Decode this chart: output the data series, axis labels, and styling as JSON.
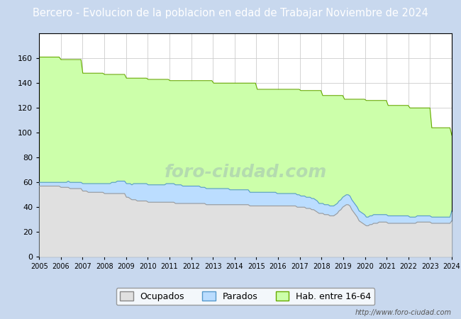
{
  "title": "Bercero - Evolucion de la poblacion en edad de Trabajar Noviembre de 2024",
  "title_bg": "#5b8dd9",
  "title_color": "white",
  "title_fontsize": 10.5,
  "years_labels": [
    2005,
    2006,
    2007,
    2008,
    2009,
    2010,
    2011,
    2012,
    2013,
    2014,
    2015,
    2016,
    2017,
    2018,
    2019,
    2020,
    2021,
    2022,
    2023,
    2024
  ],
  "hab_16_64": [
    161,
    161,
    161,
    161,
    161,
    161,
    161,
    161,
    161,
    161,
    161,
    161,
    159,
    159,
    159,
    159,
    159,
    159,
    159,
    159,
    159,
    159,
    159,
    159,
    148,
    148,
    148,
    148,
    148,
    148,
    148,
    148,
    148,
    148,
    148,
    148,
    147,
    147,
    147,
    147,
    147,
    147,
    147,
    147,
    147,
    147,
    147,
    147,
    144,
    144,
    144,
    144,
    144,
    144,
    144,
    144,
    144,
    144,
    144,
    144,
    143,
    143,
    143,
    143,
    143,
    143,
    143,
    143,
    143,
    143,
    143,
    143,
    142,
    142,
    142,
    142,
    142,
    142,
    142,
    142,
    142,
    142,
    142,
    142,
    142,
    142,
    142,
    142,
    142,
    142,
    142,
    142,
    142,
    142,
    142,
    142,
    140,
    140,
    140,
    140,
    140,
    140,
    140,
    140,
    140,
    140,
    140,
    140,
    140,
    140,
    140,
    140,
    140,
    140,
    140,
    140,
    140,
    140,
    140,
    140,
    135,
    135,
    135,
    135,
    135,
    135,
    135,
    135,
    135,
    135,
    135,
    135,
    135,
    135,
    135,
    135,
    135,
    135,
    135,
    135,
    135,
    135,
    135,
    135,
    134,
    134,
    134,
    134,
    134,
    134,
    134,
    134,
    134,
    134,
    134,
    134,
    130,
    130,
    130,
    130,
    130,
    130,
    130,
    130,
    130,
    130,
    130,
    130,
    127,
    127,
    127,
    127,
    127,
    127,
    127,
    127,
    127,
    127,
    127,
    127,
    126,
    126,
    126,
    126,
    126,
    126,
    126,
    126,
    126,
    126,
    126,
    126,
    122,
    122,
    122,
    122,
    122,
    122,
    122,
    122,
    122,
    122,
    122,
    122,
    120,
    120,
    120,
    120,
    120,
    120,
    120,
    120,
    120,
    120,
    120,
    120,
    104,
    104,
    104,
    104,
    104,
    104,
    104,
    104,
    104,
    104,
    104,
    98
  ],
  "ocupados": [
    57,
    57,
    57,
    57,
    57,
    57,
    57,
    57,
    57,
    57,
    57,
    57,
    56,
    56,
    56,
    56,
    56,
    55,
    55,
    55,
    55,
    55,
    55,
    55,
    53,
    53,
    53,
    52,
    52,
    52,
    52,
    52,
    52,
    52,
    52,
    52,
    51,
    51,
    51,
    51,
    51,
    51,
    51,
    51,
    51,
    51,
    51,
    51,
    48,
    48,
    47,
    46,
    46,
    46,
    45,
    45,
    45,
    45,
    45,
    45,
    44,
    44,
    44,
    44,
    44,
    44,
    44,
    44,
    44,
    44,
    44,
    44,
    44,
    44,
    44,
    43,
    43,
    43,
    43,
    43,
    43,
    43,
    43,
    43,
    43,
    43,
    43,
    43,
    43,
    43,
    43,
    43,
    42,
    42,
    42,
    42,
    42,
    42,
    42,
    42,
    42,
    42,
    42,
    42,
    42,
    42,
    42,
    42,
    42,
    42,
    42,
    42,
    42,
    42,
    42,
    42,
    41,
    41,
    41,
    41,
    41,
    41,
    41,
    41,
    41,
    41,
    41,
    41,
    41,
    41,
    41,
    41,
    41,
    41,
    41,
    41,
    41,
    41,
    41,
    41,
    41,
    41,
    40,
    40,
    40,
    40,
    40,
    39,
    39,
    39,
    38,
    38,
    37,
    36,
    35,
    35,
    35,
    34,
    34,
    34,
    33,
    33,
    33,
    34,
    35,
    37,
    38,
    40,
    41,
    42,
    42,
    41,
    38,
    36,
    34,
    32,
    29,
    28,
    27,
    26,
    25,
    25,
    26,
    26,
    27,
    27,
    27,
    28,
    28,
    28,
    28,
    28,
    27,
    27,
    27,
    27,
    27,
    27,
    27,
    27,
    27,
    27,
    27,
    27,
    27,
    27,
    27,
    27,
    28,
    28,
    28,
    28,
    28,
    28,
    28,
    28,
    27,
    27,
    27,
    27,
    27,
    27,
    27,
    27,
    27,
    27,
    27,
    29
  ],
  "parados": [
    3,
    3,
    3,
    3,
    3,
    3,
    3,
    3,
    3,
    3,
    3,
    3,
    4,
    4,
    4,
    4,
    5,
    5,
    5,
    5,
    5,
    5,
    5,
    5,
    6,
    6,
    6,
    7,
    7,
    7,
    7,
    7,
    7,
    7,
    7,
    7,
    8,
    8,
    8,
    8,
    9,
    9,
    9,
    10,
    10,
    10,
    10,
    10,
    11,
    11,
    12,
    12,
    13,
    13,
    14,
    14,
    14,
    14,
    14,
    14,
    14,
    14,
    14,
    14,
    14,
    14,
    14,
    14,
    14,
    14,
    15,
    15,
    15,
    15,
    15,
    15,
    15,
    15,
    15,
    14,
    14,
    14,
    14,
    14,
    14,
    14,
    14,
    14,
    14,
    13,
    13,
    13,
    13,
    13,
    13,
    13,
    13,
    13,
    13,
    13,
    13,
    13,
    13,
    13,
    13,
    12,
    12,
    12,
    12,
    12,
    12,
    12,
    12,
    12,
    12,
    12,
    11,
    11,
    11,
    11,
    11,
    11,
    11,
    11,
    11,
    11,
    11,
    11,
    11,
    11,
    11,
    10,
    10,
    10,
    10,
    10,
    10,
    10,
    10,
    10,
    10,
    10,
    10,
    10,
    9,
    9,
    9,
    9,
    9,
    9,
    9,
    9,
    9,
    9,
    8,
    8,
    8,
    8,
    8,
    8,
    8,
    8,
    8,
    8,
    8,
    8,
    8,
    8,
    8,
    8,
    8,
    8,
    8,
    8,
    8,
    8,
    8,
    8,
    8,
    8,
    7,
    7,
    7,
    7,
    7,
    7,
    7,
    6,
    6,
    6,
    6,
    6,
    6,
    6,
    6,
    6,
    6,
    6,
    6,
    6,
    6,
    6,
    6,
    6,
    5,
    5,
    5,
    5,
    5,
    5,
    5,
    5,
    5,
    5,
    5,
    5,
    5,
    5,
    5,
    5,
    5,
    5,
    5,
    5,
    5,
    5,
    5,
    8
  ],
  "hab_color": "#ccffaa",
  "hab_edge": "#66aa00",
  "ocupados_color": "#e0e0e0",
  "ocupados_edge": "#999999",
  "parados_color": "#bbddff",
  "parados_edge": "#5599cc",
  "ylim": [
    0,
    180
  ],
  "yticks": [
    0,
    20,
    40,
    60,
    80,
    100,
    120,
    140,
    160
  ],
  "legend_labels": [
    "Ocupados",
    "Parados",
    "Hab. entre 16-64"
  ],
  "fig_bg": "#ffffff",
  "plot_bg": "#ffffff",
  "outer_bg": "#c8d8ee",
  "url_text": "http://www.foro-ciudad.com",
  "watermark_text": "foro-ciudad.com"
}
